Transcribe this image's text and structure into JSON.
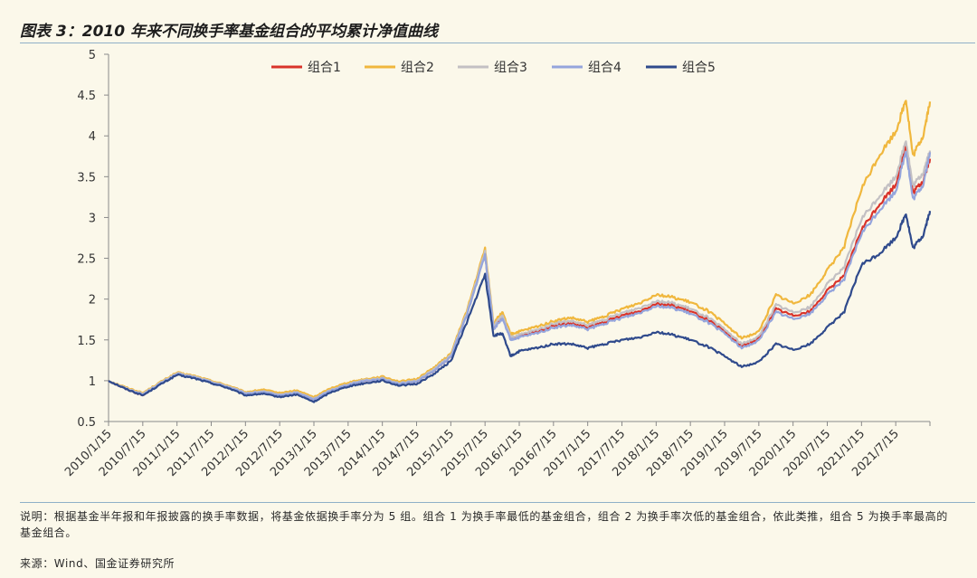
{
  "header": {
    "title": "图表 3：2010 年来不同换手率基金组合的平均累计净值曲线"
  },
  "footer": {
    "note": "说明：根据基金半年报和年报披露的换手率数据，将基金依据换手率分为 5 组。组合 1 为换手率最低的基金组合，组合 2 为换手率次低的基金组合，依此类推，组合 5 为换手率最高的基金组合。",
    "source": "来源：Wind、国金证券研究所"
  },
  "chart_data": {
    "type": "line",
    "title": "",
    "xlabel": "",
    "ylabel": "",
    "ylim": [
      0.5,
      5
    ],
    "yticks": [
      "0.5",
      "1",
      "1.5",
      "2",
      "2.5",
      "3",
      "3.5",
      "4",
      "4.5",
      "5"
    ],
    "xticks": [
      "2010/1/15",
      "2010/7/15",
      "2011/1/15",
      "2011/7/15",
      "2012/1/15",
      "2012/7/15",
      "2013/1/15",
      "2013/7/15",
      "2014/1/15",
      "2014/7/15",
      "2015/1/15",
      "2015/7/15",
      "2016/1/15",
      "2016/7/15",
      "2017/1/15",
      "2017/7/15",
      "2018/1/15",
      "2018/7/15",
      "2019/1/15",
      "2019/7/15",
      "2020/1/15",
      "2020/7/15",
      "2021/1/15",
      "2021/7/15"
    ],
    "x_start_index": 0,
    "x_end_index": 23,
    "legend_position": "top",
    "series": [
      {
        "name": "组合1",
        "color": "#d9332a",
        "points": [
          [
            0,
            1.0
          ],
          [
            0.5,
            0.9
          ],
          [
            1,
            0.82
          ],
          [
            1.5,
            0.96
          ],
          [
            2,
            1.08
          ],
          [
            2.5,
            1.04
          ],
          [
            3,
            0.99
          ],
          [
            3.5,
            0.92
          ],
          [
            4,
            0.84
          ],
          [
            4.5,
            0.86
          ],
          [
            5,
            0.82
          ],
          [
            5.5,
            0.85
          ],
          [
            6,
            0.77
          ],
          [
            6.5,
            0.88
          ],
          [
            7,
            0.95
          ],
          [
            7.5,
            1.0
          ],
          [
            8,
            1.02
          ],
          [
            8.5,
            0.96
          ],
          [
            9,
            0.99
          ],
          [
            9.5,
            1.12
          ],
          [
            10,
            1.29
          ],
          [
            10.5,
            1.85
          ],
          [
            11,
            2.55
          ],
          [
            11.25,
            1.65
          ],
          [
            11.5,
            1.78
          ],
          [
            11.75,
            1.52
          ],
          [
            12,
            1.55
          ],
          [
            12.5,
            1.6
          ],
          [
            13,
            1.68
          ],
          [
            13.5,
            1.7
          ],
          [
            14,
            1.65
          ],
          [
            14.5,
            1.72
          ],
          [
            15,
            1.8
          ],
          [
            15.5,
            1.85
          ],
          [
            16,
            1.95
          ],
          [
            16.5,
            1.92
          ],
          [
            17,
            1.85
          ],
          [
            17.5,
            1.75
          ],
          [
            18,
            1.6
          ],
          [
            18.5,
            1.42
          ],
          [
            19,
            1.52
          ],
          [
            19.5,
            1.88
          ],
          [
            20,
            1.8
          ],
          [
            20.5,
            1.85
          ],
          [
            21,
            2.1
          ],
          [
            21.5,
            2.3
          ],
          [
            22,
            2.85
          ],
          [
            22.5,
            3.15
          ],
          [
            23,
            3.4
          ],
          [
            23.3,
            3.9
          ],
          [
            23.5,
            3.3
          ],
          [
            23.8,
            3.45
          ],
          [
            24,
            3.72
          ]
        ]
      },
      {
        "name": "组合2",
        "color": "#f0b73d",
        "points": [
          [
            0,
            1.0
          ],
          [
            0.5,
            0.92
          ],
          [
            1,
            0.85
          ],
          [
            1.5,
            0.98
          ],
          [
            2,
            1.1
          ],
          [
            2.5,
            1.06
          ],
          [
            3,
            1.0
          ],
          [
            3.5,
            0.94
          ],
          [
            4,
            0.86
          ],
          [
            4.5,
            0.89
          ],
          [
            5,
            0.85
          ],
          [
            5.5,
            0.88
          ],
          [
            6,
            0.8
          ],
          [
            6.5,
            0.91
          ],
          [
            7,
            0.98
          ],
          [
            7.5,
            1.02
          ],
          [
            8,
            1.05
          ],
          [
            8.5,
            0.99
          ],
          [
            9,
            1.02
          ],
          [
            9.5,
            1.16
          ],
          [
            10,
            1.33
          ],
          [
            10.5,
            1.9
          ],
          [
            11,
            2.62
          ],
          [
            11.25,
            1.7
          ],
          [
            11.5,
            1.84
          ],
          [
            11.75,
            1.57
          ],
          [
            12,
            1.6
          ],
          [
            12.5,
            1.66
          ],
          [
            13,
            1.73
          ],
          [
            13.5,
            1.77
          ],
          [
            14,
            1.72
          ],
          [
            14.5,
            1.79
          ],
          [
            15,
            1.88
          ],
          [
            15.5,
            1.95
          ],
          [
            16,
            2.06
          ],
          [
            16.5,
            2.02
          ],
          [
            17,
            1.96
          ],
          [
            17.5,
            1.86
          ],
          [
            18,
            1.7
          ],
          [
            18.5,
            1.52
          ],
          [
            19,
            1.6
          ],
          [
            19.5,
            2.05
          ],
          [
            20,
            1.95
          ],
          [
            20.5,
            2.05
          ],
          [
            21,
            2.35
          ],
          [
            21.5,
            2.65
          ],
          [
            22,
            3.35
          ],
          [
            22.5,
            3.75
          ],
          [
            23,
            4.05
          ],
          [
            23.3,
            4.45
          ],
          [
            23.5,
            3.75
          ],
          [
            23.8,
            4.0
          ],
          [
            24,
            4.42
          ]
        ]
      },
      {
        "name": "组合3",
        "color": "#c3c0c3",
        "points": [
          [
            0,
            1.0
          ],
          [
            0.5,
            0.91
          ],
          [
            1,
            0.84
          ],
          [
            1.5,
            0.97
          ],
          [
            2,
            1.09
          ],
          [
            2.5,
            1.05
          ],
          [
            3,
            0.99
          ],
          [
            3.5,
            0.93
          ],
          [
            4,
            0.85
          ],
          [
            4.5,
            0.87
          ],
          [
            5,
            0.83
          ],
          [
            5.5,
            0.86
          ],
          [
            6,
            0.78
          ],
          [
            6.5,
            0.89
          ],
          [
            7,
            0.96
          ],
          [
            7.5,
            1.01
          ],
          [
            8,
            1.03
          ],
          [
            8.5,
            0.97
          ],
          [
            9,
            1.0
          ],
          [
            9.5,
            1.14
          ],
          [
            10,
            1.31
          ],
          [
            10.5,
            1.87
          ],
          [
            11,
            2.58
          ],
          [
            11.25,
            1.67
          ],
          [
            11.5,
            1.8
          ],
          [
            11.75,
            1.53
          ],
          [
            12,
            1.56
          ],
          [
            12.5,
            1.62
          ],
          [
            13,
            1.7
          ],
          [
            13.5,
            1.73
          ],
          [
            14,
            1.68
          ],
          [
            14.5,
            1.75
          ],
          [
            15,
            1.83
          ],
          [
            15.5,
            1.89
          ],
          [
            16,
            1.98
          ],
          [
            16.5,
            1.95
          ],
          [
            17,
            1.88
          ],
          [
            17.5,
            1.78
          ],
          [
            18,
            1.63
          ],
          [
            18.5,
            1.45
          ],
          [
            19,
            1.54
          ],
          [
            19.5,
            1.93
          ],
          [
            20,
            1.84
          ],
          [
            20.5,
            1.9
          ],
          [
            21,
            2.18
          ],
          [
            21.5,
            2.4
          ],
          [
            22,
            2.98
          ],
          [
            22.5,
            3.25
          ],
          [
            23,
            3.5
          ],
          [
            23.3,
            3.95
          ],
          [
            23.5,
            3.38
          ],
          [
            23.8,
            3.55
          ],
          [
            24,
            3.82
          ]
        ]
      },
      {
        "name": "组合4",
        "color": "#95a5dc",
        "points": [
          [
            0,
            1.0
          ],
          [
            0.5,
            0.9
          ],
          [
            1,
            0.83
          ],
          [
            1.5,
            0.96
          ],
          [
            2,
            1.08
          ],
          [
            2.5,
            1.04
          ],
          [
            3,
            0.98
          ],
          [
            3.5,
            0.92
          ],
          [
            4,
            0.84
          ],
          [
            4.5,
            0.86
          ],
          [
            5,
            0.82
          ],
          [
            5.5,
            0.85
          ],
          [
            6,
            0.77
          ],
          [
            6.5,
            0.88
          ],
          [
            7,
            0.95
          ],
          [
            7.5,
            1.0
          ],
          [
            8,
            1.02
          ],
          [
            8.5,
            0.96
          ],
          [
            9,
            0.99
          ],
          [
            9.5,
            1.12
          ],
          [
            10,
            1.29
          ],
          [
            10.5,
            1.84
          ],
          [
            11,
            2.54
          ],
          [
            11.25,
            1.63
          ],
          [
            11.5,
            1.76
          ],
          [
            11.75,
            1.5
          ],
          [
            12,
            1.53
          ],
          [
            12.5,
            1.58
          ],
          [
            13,
            1.65
          ],
          [
            13.5,
            1.68
          ],
          [
            14,
            1.63
          ],
          [
            14.5,
            1.7
          ],
          [
            15,
            1.77
          ],
          [
            15.5,
            1.83
          ],
          [
            16,
            1.92
          ],
          [
            16.5,
            1.89
          ],
          [
            17,
            1.82
          ],
          [
            17.5,
            1.72
          ],
          [
            18,
            1.58
          ],
          [
            18.5,
            1.4
          ],
          [
            19,
            1.49
          ],
          [
            19.5,
            1.84
          ],
          [
            20,
            1.76
          ],
          [
            20.5,
            1.82
          ],
          [
            21,
            2.05
          ],
          [
            21.5,
            2.25
          ],
          [
            22,
            2.8
          ],
          [
            22.5,
            3.08
          ],
          [
            23,
            3.32
          ],
          [
            23.3,
            3.82
          ],
          [
            23.5,
            3.22
          ],
          [
            23.8,
            3.4
          ],
          [
            24,
            3.8
          ]
        ]
      },
      {
        "name": "组合5",
        "color": "#2f4a8c",
        "points": [
          [
            0,
            1.0
          ],
          [
            0.5,
            0.9
          ],
          [
            1,
            0.82
          ],
          [
            1.5,
            0.95
          ],
          [
            2,
            1.07
          ],
          [
            2.5,
            1.03
          ],
          [
            3,
            0.97
          ],
          [
            3.5,
            0.91
          ],
          [
            4,
            0.82
          ],
          [
            4.5,
            0.84
          ],
          [
            5,
            0.8
          ],
          [
            5.5,
            0.83
          ],
          [
            6,
            0.74
          ],
          [
            6.5,
            0.86
          ],
          [
            7,
            0.93
          ],
          [
            7.5,
            0.97
          ],
          [
            8,
            1.0
          ],
          [
            8.5,
            0.94
          ],
          [
            9,
            0.96
          ],
          [
            9.5,
            1.08
          ],
          [
            10,
            1.24
          ],
          [
            10.5,
            1.75
          ],
          [
            11,
            2.3
          ],
          [
            11.25,
            1.55
          ],
          [
            11.5,
            1.58
          ],
          [
            11.75,
            1.3
          ],
          [
            12,
            1.36
          ],
          [
            12.5,
            1.4
          ],
          [
            13,
            1.45
          ],
          [
            13.5,
            1.45
          ],
          [
            14,
            1.4
          ],
          [
            14.5,
            1.45
          ],
          [
            15,
            1.5
          ],
          [
            15.5,
            1.53
          ],
          [
            16,
            1.6
          ],
          [
            16.5,
            1.56
          ],
          [
            17,
            1.5
          ],
          [
            17.5,
            1.42
          ],
          [
            18,
            1.3
          ],
          [
            18.5,
            1.17
          ],
          [
            19,
            1.23
          ],
          [
            19.5,
            1.45
          ],
          [
            20,
            1.38
          ],
          [
            20.5,
            1.45
          ],
          [
            21,
            1.65
          ],
          [
            21.5,
            1.85
          ],
          [
            22,
            2.42
          ],
          [
            22.5,
            2.55
          ],
          [
            23,
            2.75
          ],
          [
            23.3,
            3.05
          ],
          [
            23.5,
            2.62
          ],
          [
            23.8,
            2.78
          ],
          [
            24,
            3.08
          ]
        ]
      }
    ]
  }
}
